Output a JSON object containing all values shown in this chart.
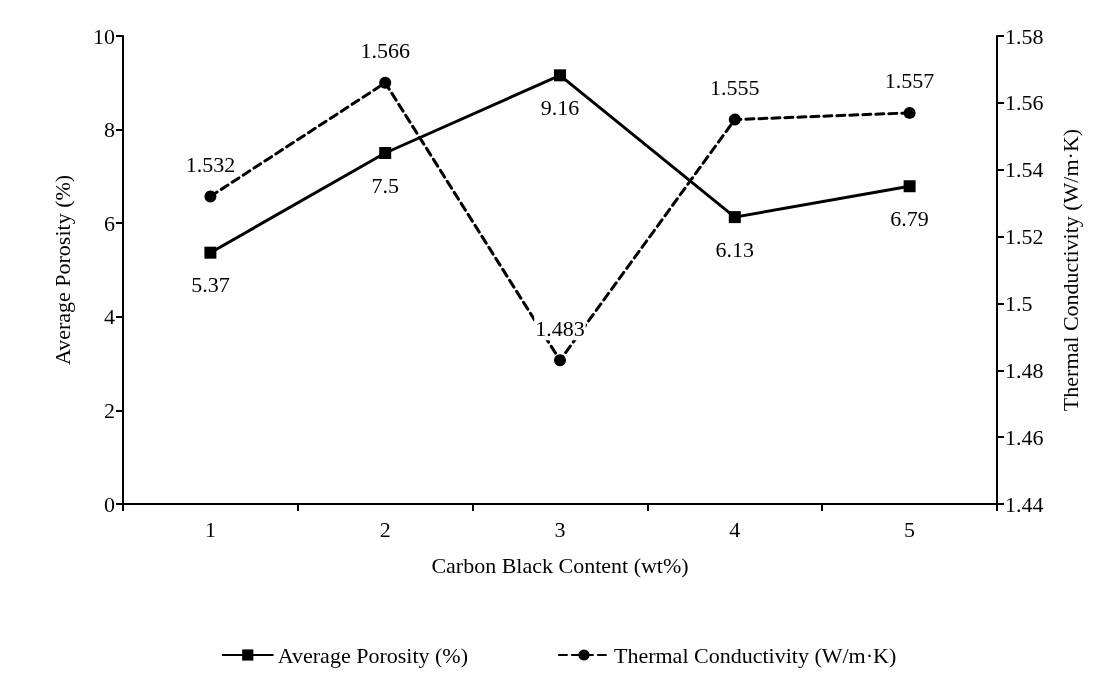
{
  "chart_data": {
    "type": "line",
    "xlabel": "Carbon Black Content (wt%)",
    "ylabel": "Average Porosity (%)",
    "y2label": "Thermal Conductivity (W/m·K)",
    "categories": [
      "1",
      "2",
      "3",
      "4",
      "5"
    ],
    "series": [
      {
        "name": "Average Porosity (%)",
        "color": "#000000",
        "values": [
          5.37,
          7.5,
          9.16,
          6.13,
          6.79
        ],
        "marker": "square",
        "line_style": "solid"
      },
      {
        "name": "Thermal Conductivity (W/m·K)",
        "color": "#000000",
        "values": [
          1.532,
          1.566,
          1.483,
          1.555,
          1.557
        ],
        "marker": "circle",
        "line_style": "dashed",
        "axis": "y2"
      }
    ],
    "ylim": [
      0,
      10
    ],
    "yticks": [
      0,
      2,
      4,
      6,
      8,
      10
    ],
    "y2lim": [
      1.44,
      1.58
    ],
    "y2ticks": [
      1.44,
      1.46,
      1.48,
      1.5,
      1.52,
      1.54,
      1.56,
      1.58
    ],
    "data_labels": true,
    "legend": "bottom",
    "grid": false
  }
}
